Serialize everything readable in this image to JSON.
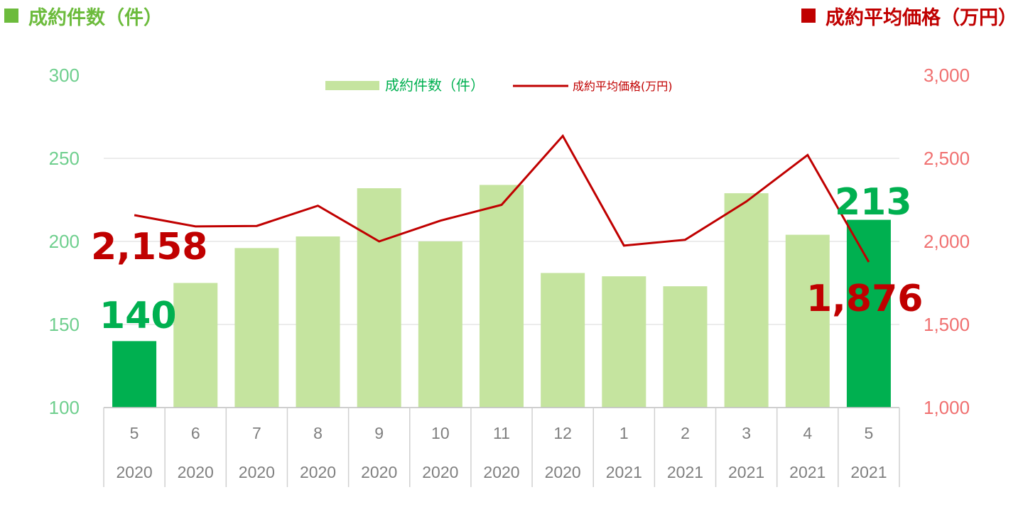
{
  "headers": {
    "left_title": "成約件数（件）",
    "right_title": "成約平均価格（万円）"
  },
  "colors": {
    "bar": "#c5e49f",
    "bar_highlight": "#00b050",
    "line": "#c00000",
    "left_axis": "#6fcf8e",
    "right_axis": "#f07070",
    "header_green": "#6cbb3c",
    "header_red": "#c00000"
  },
  "chart_data": {
    "type": "bar+line",
    "categories": [
      {
        "month": "5",
        "year": "2020"
      },
      {
        "month": "6",
        "year": "2020"
      },
      {
        "month": "7",
        "year": "2020"
      },
      {
        "month": "8",
        "year": "2020"
      },
      {
        "month": "9",
        "year": "2020"
      },
      {
        "month": "10",
        "year": "2020"
      },
      {
        "month": "11",
        "year": "2020"
      },
      {
        "month": "12",
        "year": "2020"
      },
      {
        "month": "1",
        "year": "2021"
      },
      {
        "month": "2",
        "year": "2021"
      },
      {
        "month": "3",
        "year": "2021"
      },
      {
        "month": "4",
        "year": "2021"
      },
      {
        "month": "5",
        "year": "2021"
      }
    ],
    "series": [
      {
        "name": "成約件数（件）",
        "kind": "bar",
        "axis": "left",
        "values": [
          140,
          175,
          196,
          203,
          232,
          200,
          234,
          181,
          179,
          173,
          229,
          204,
          213
        ],
        "highlight": [
          0,
          12
        ]
      },
      {
        "name": "成約平均価格(万円)",
        "kind": "line",
        "axis": "right",
        "values": [
          2158,
          2090,
          2093,
          2215,
          2000,
          2125,
          2220,
          2635,
          1975,
          2010,
          2240,
          2520,
          1876
        ]
      }
    ],
    "left_axis": {
      "min": 100,
      "max": 300,
      "ticks": [
        "100",
        "150",
        "200",
        "250",
        "300"
      ]
    },
    "right_axis": {
      "min": 1000,
      "max": 3000,
      "ticks": [
        "1,000",
        "1,500",
        "2,000",
        "2,500",
        "3,000"
      ]
    },
    "gridlines": true,
    "legend_position": "top-center",
    "callouts": {
      "first_price": "2,158",
      "first_count": "140",
      "last_count": "213",
      "last_price": "1,876"
    }
  }
}
